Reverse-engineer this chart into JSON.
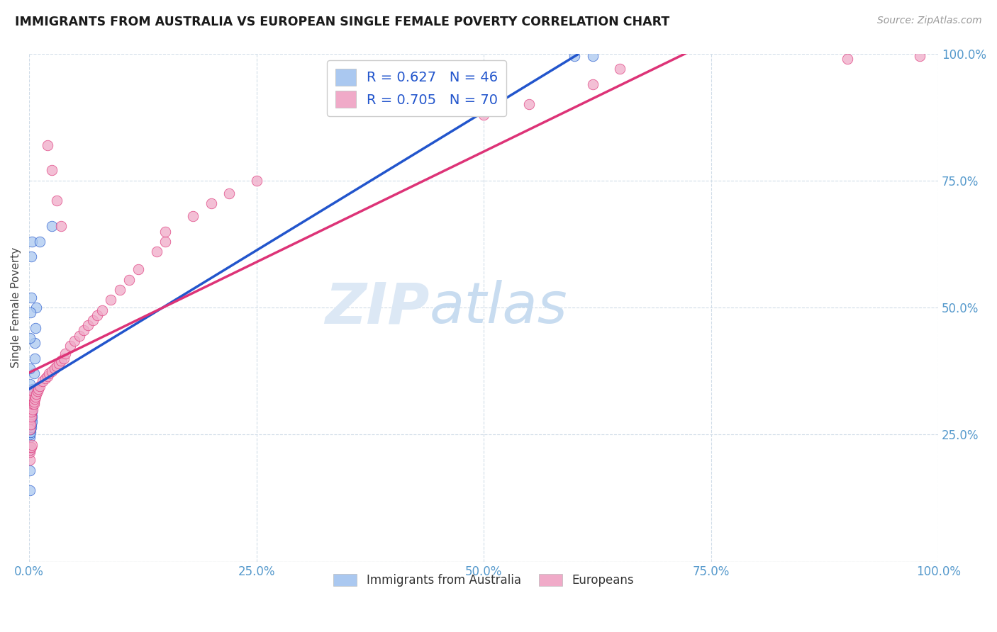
{
  "title": "IMMIGRANTS FROM AUSTRALIA VS EUROPEAN SINGLE FEMALE POVERTY CORRELATION CHART",
  "source": "Source: ZipAtlas.com",
  "ylabel": "Single Female Poverty",
  "color_blue": "#aac8f0",
  "color_pink": "#f0aac8",
  "line_blue": "#2255cc",
  "line_pink": "#dd3377",
  "tick_color": "#5599cc",
  "grid_color": "#d0dce8",
  "watermark_zip_color": "#dce8f5",
  "watermark_atlas_color": "#c8dcf0",
  "aus_x": [
    0.0008,
    0.001,
    0.001,
    0.001,
    0.001,
    0.0012,
    0.0013,
    0.0015,
    0.0015,
    0.0018,
    0.002,
    0.002,
    0.002,
    0.0022,
    0.0025,
    0.003,
    0.003,
    0.003,
    0.003,
    0.003,
    0.004,
    0.004,
    0.005,
    0.005,
    0.006,
    0.006,
    0.007,
    0.008,
    0.001,
    0.0015,
    0.002,
    0.0025,
    0.003,
    0.012,
    0.025,
    0.001,
    0.001,
    0.001,
    0.001,
    0.0005,
    0.0005,
    0.001,
    0.001,
    0.6,
    0.62
  ],
  "aus_y": [
    0.245,
    0.25,
    0.255,
    0.26,
    0.265,
    0.27,
    0.255,
    0.26,
    0.275,
    0.27,
    0.265,
    0.275,
    0.28,
    0.27,
    0.285,
    0.275,
    0.285,
    0.295,
    0.305,
    0.315,
    0.32,
    0.34,
    0.34,
    0.37,
    0.4,
    0.43,
    0.46,
    0.5,
    0.44,
    0.49,
    0.6,
    0.52,
    0.63,
    0.63,
    0.66,
    0.38,
    0.35,
    0.33,
    0.31,
    0.18,
    0.14,
    0.22,
    0.28,
    0.995,
    0.995
  ],
  "eur_x": [
    0.001,
    0.001,
    0.001,
    0.001,
    0.001,
    0.0012,
    0.0015,
    0.0018,
    0.002,
    0.002,
    0.0022,
    0.0025,
    0.003,
    0.003,
    0.0035,
    0.004,
    0.004,
    0.005,
    0.005,
    0.006,
    0.007,
    0.008,
    0.009,
    0.01,
    0.012,
    0.015,
    0.018,
    0.02,
    0.022,
    0.025,
    0.028,
    0.03,
    0.033,
    0.035,
    0.038,
    0.04,
    0.045,
    0.05,
    0.055,
    0.06,
    0.065,
    0.07,
    0.075,
    0.08,
    0.09,
    0.1,
    0.11,
    0.12,
    0.14,
    0.15,
    0.001,
    0.001,
    0.001,
    0.0015,
    0.002,
    0.003,
    0.02,
    0.025,
    0.03,
    0.035,
    0.15,
    0.18,
    0.2,
    0.22,
    0.25,
    0.5,
    0.55,
    0.62,
    0.65,
    0.9,
    0.98
  ],
  "eur_y": [
    0.27,
    0.28,
    0.3,
    0.26,
    0.32,
    0.29,
    0.27,
    0.295,
    0.285,
    0.32,
    0.295,
    0.315,
    0.305,
    0.325,
    0.3,
    0.31,
    0.335,
    0.31,
    0.315,
    0.32,
    0.325,
    0.33,
    0.335,
    0.34,
    0.345,
    0.355,
    0.36,
    0.365,
    0.37,
    0.375,
    0.38,
    0.385,
    0.39,
    0.395,
    0.4,
    0.41,
    0.425,
    0.435,
    0.445,
    0.455,
    0.465,
    0.475,
    0.485,
    0.495,
    0.515,
    0.535,
    0.555,
    0.575,
    0.61,
    0.63,
    0.2,
    0.215,
    0.22,
    0.225,
    0.225,
    0.23,
    0.82,
    0.77,
    0.71,
    0.66,
    0.65,
    0.68,
    0.705,
    0.725,
    0.75,
    0.88,
    0.9,
    0.94,
    0.97,
    0.99,
    0.995
  ],
  "xlim": [
    0.0,
    1.0
  ],
  "ylim": [
    0.0,
    1.0
  ],
  "x_ticks": [
    0.0,
    0.25,
    0.5,
    0.75,
    1.0
  ],
  "y_ticks": [
    0.0,
    0.25,
    0.5,
    0.75,
    1.0
  ],
  "x_tick_labels": [
    "0.0%",
    "25.0%",
    "50.0%",
    "75.0%",
    "100.0%"
  ],
  "y_tick_labels_right": [
    "",
    "25.0%",
    "50.0%",
    "75.0%",
    "100.0%"
  ]
}
